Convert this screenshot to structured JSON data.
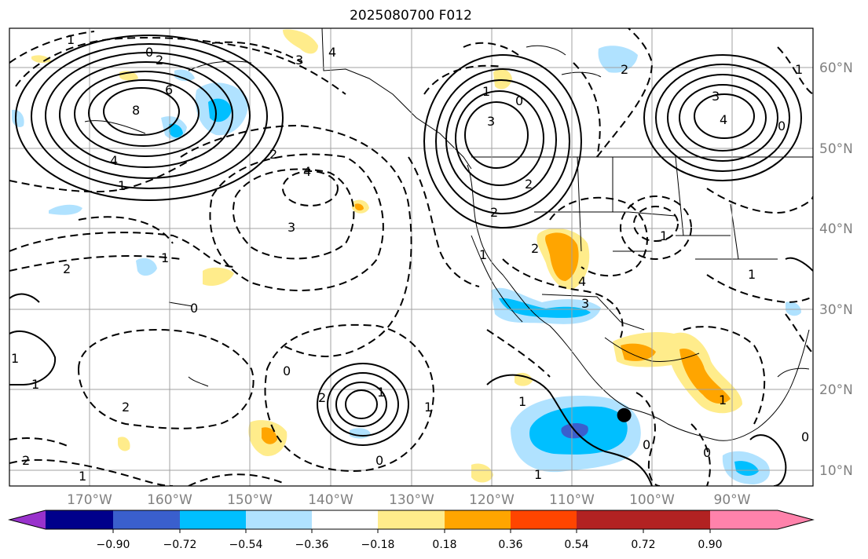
{
  "title": "2025080700 F012",
  "lat_labels": [
    "60°N",
    "50°N",
    "40°N",
    "30°N",
    "20°N",
    "10°N"
  ],
  "lon_labels": [
    "170°W",
    "160°W",
    "150°W",
    "140°W",
    "130°W",
    "120°W",
    "110°W",
    "100°W",
    "90°W"
  ],
  "colorbar": {
    "ticks": [
      "−0.90",
      "−0.72",
      "−0.54",
      "−0.36",
      "−0.18",
      "0.18",
      "0.36",
      "0.54",
      "0.72",
      "0.90"
    ],
    "colors": [
      "#9932cc",
      "#00008b",
      "#3a5fcd",
      "#00bfff",
      "#b0e2ff",
      "#ffffff",
      "#ffec8b",
      "#ffa500",
      "#ff4500",
      "#b22222",
      "#ff82ab"
    ]
  },
  "contour_labels": [
    "1",
    "0",
    "2",
    "3",
    "4",
    "6",
    "8",
    "4",
    "1",
    "2",
    "4",
    "3",
    "2",
    "1",
    "1",
    "2",
    "3",
    "2",
    "1",
    "0",
    "1",
    "3",
    "4",
    "2",
    "1",
    "0",
    "1",
    "2",
    "3",
    "4",
    "2",
    "1",
    "0",
    "1",
    "1",
    "1",
    "0",
    "1",
    "2",
    "0",
    "2",
    "0",
    "1",
    "1",
    "0",
    "1",
    "0"
  ],
  "marker": {
    "label": "storm-center",
    "lon": -103.5,
    "lat": 16.8
  }
}
